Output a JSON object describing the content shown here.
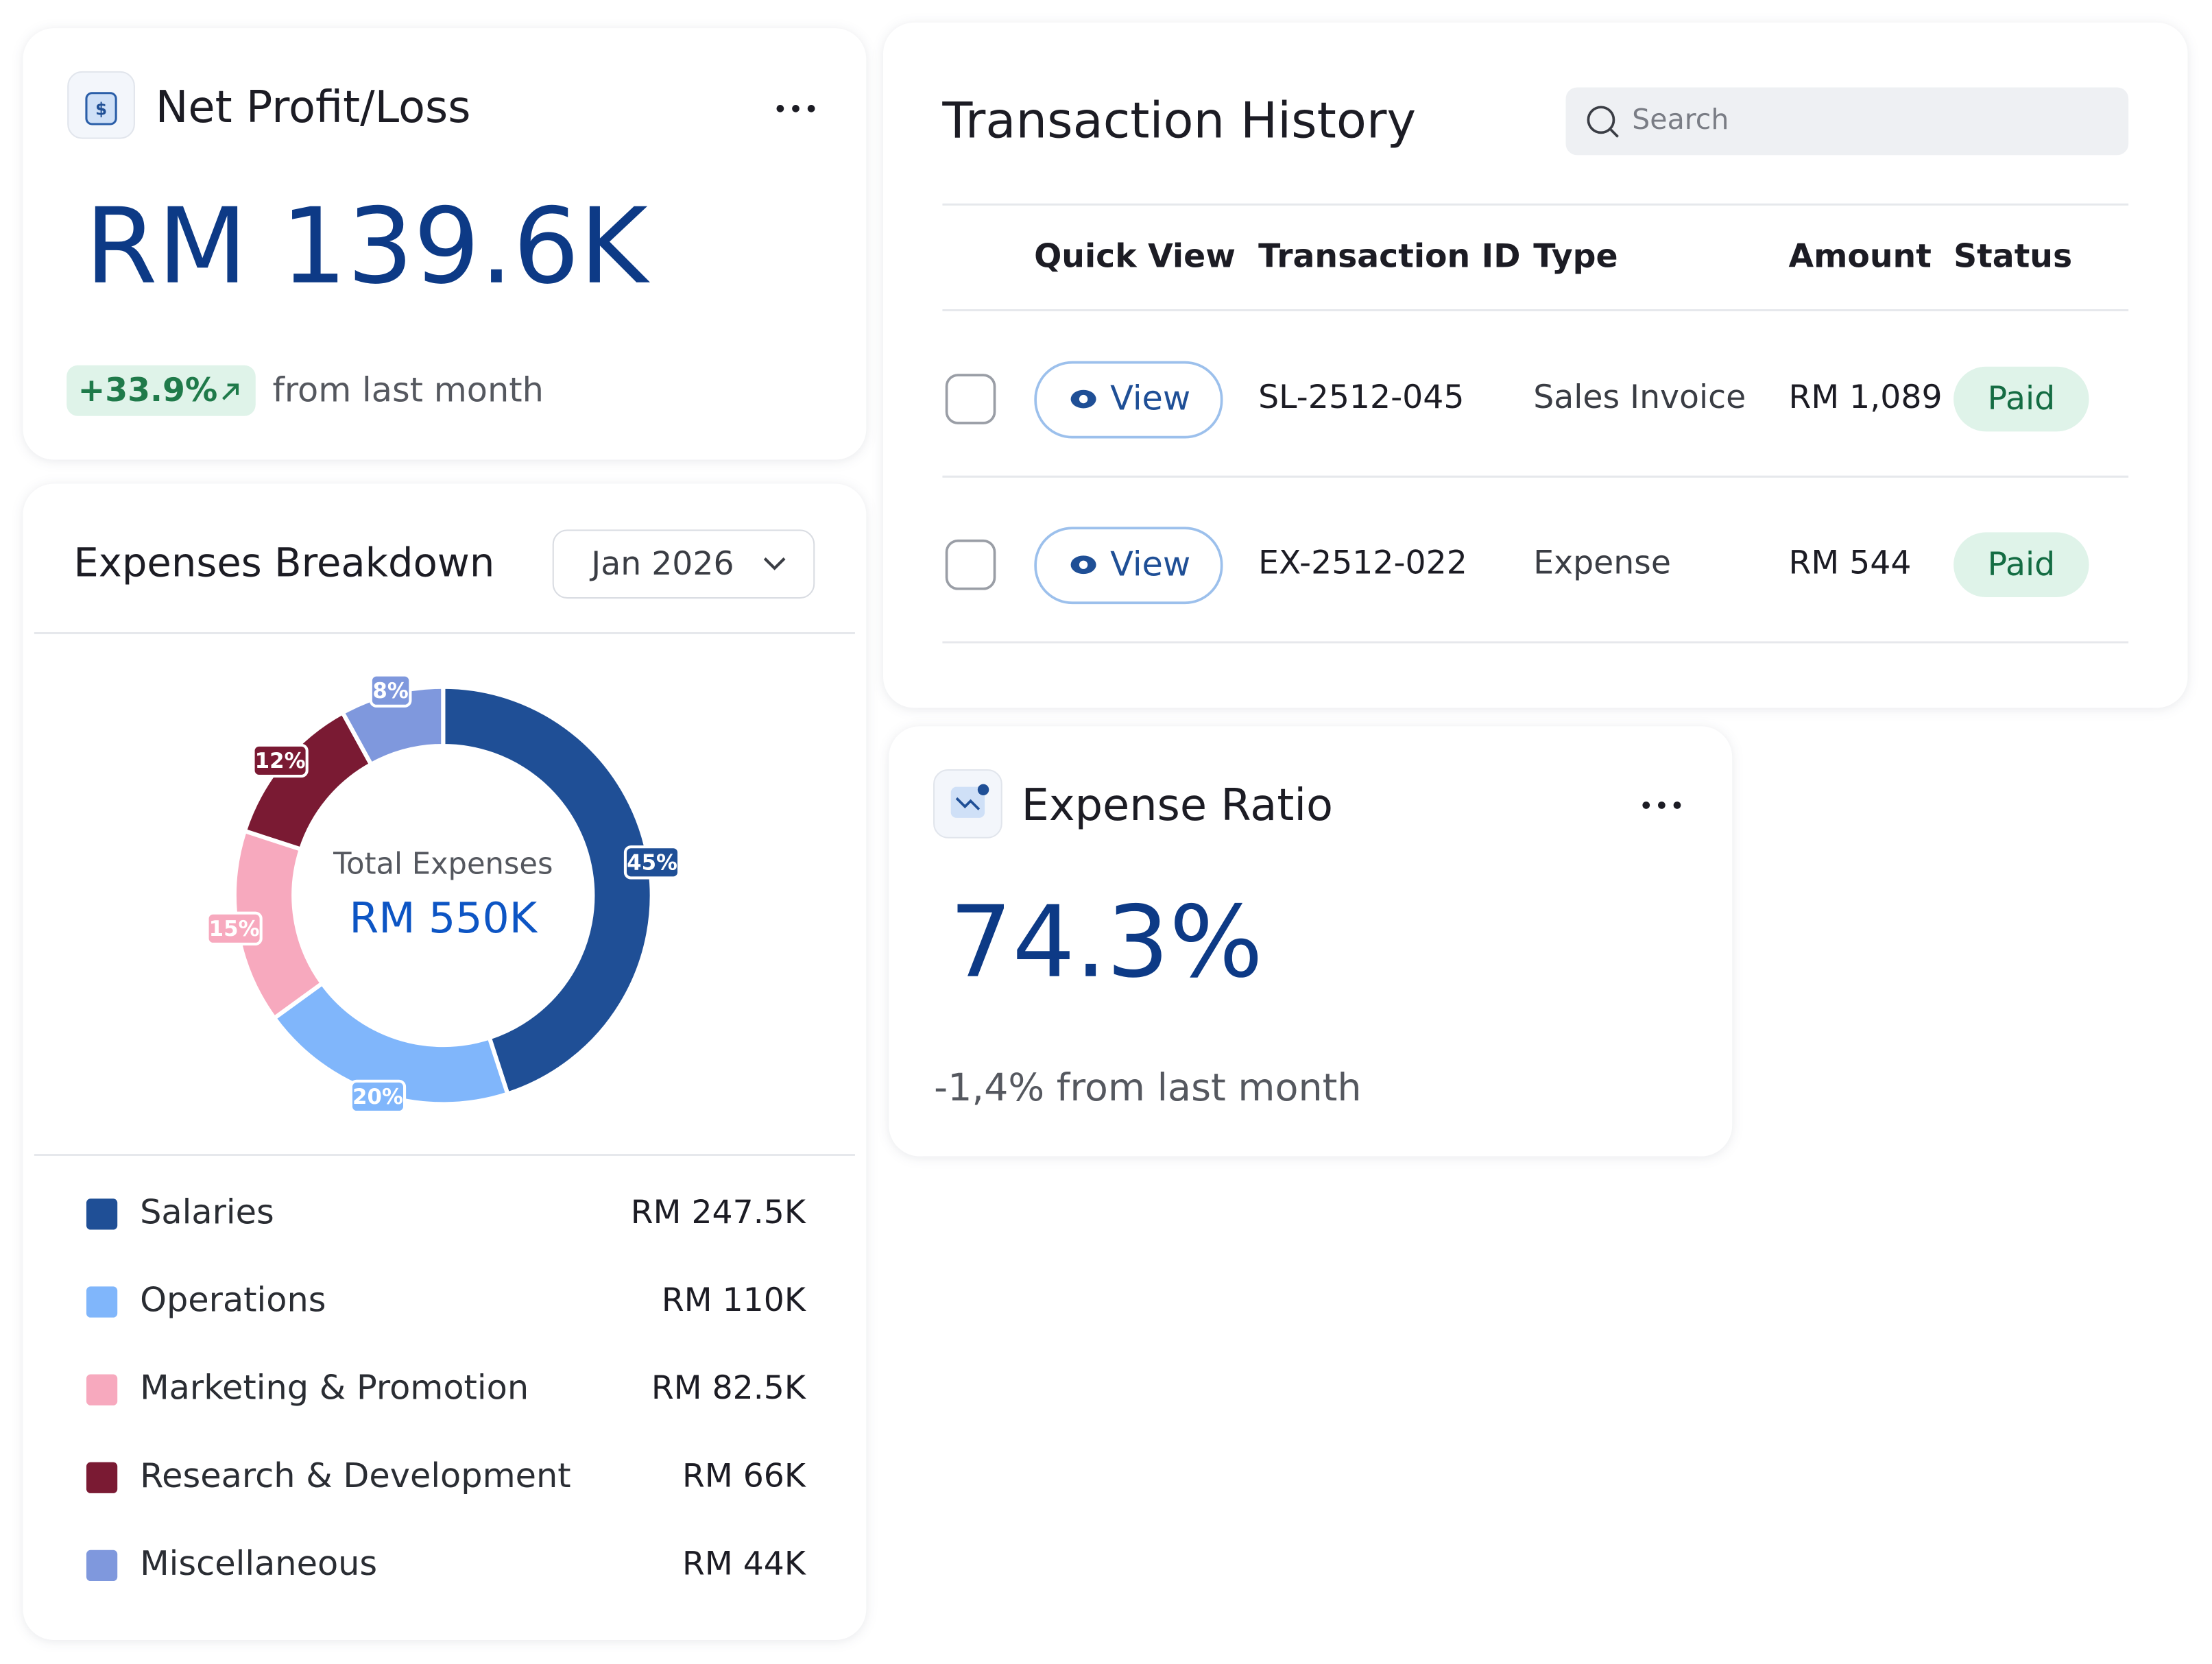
{
  "net_profit": {
    "title": "Net Profit/Loss",
    "value": "RM 139.6K",
    "change": "+33.9%",
    "change_note": "from last month"
  },
  "chart_data": {
    "type": "pie",
    "title": "Expenses Breakdown",
    "period": "Jan 2026",
    "donut": true,
    "center_label": "Total Expenses",
    "center_value": "RM 550K",
    "categories": [
      "Salaries",
      "Operations",
      "Marketing & Promotion",
      "Research & Development",
      "Miscellaneous"
    ],
    "values": [
      45,
      20,
      15,
      12,
      8
    ],
    "value_labels": [
      "45%",
      "20%",
      "15%",
      "12%",
      "8%"
    ],
    "amounts": [
      "RM 247.5K",
      "RM 110K",
      "RM 82.5K",
      "RM 66K",
      "RM 44K"
    ],
    "colors": [
      "#1f4f96",
      "#80b6fb",
      "#f7a9be",
      "#7a1a33",
      "#7f98dd"
    ]
  },
  "transactions": {
    "title": "Transaction History",
    "search_placeholder": "Search",
    "columns": [
      "Quick View",
      "Transaction ID",
      "Type",
      "Amount",
      "Status"
    ],
    "rows": [
      {
        "action": "View",
        "id": "SL-2512-045",
        "type": "Sales Invoice",
        "amount": "RM 1,089",
        "status": "Paid"
      },
      {
        "action": "View",
        "id": "EX-2512-022",
        "type": "Expense",
        "amount": "RM 544",
        "status": "Paid"
      }
    ]
  },
  "expense_ratio": {
    "title": "Expense Ratio",
    "value": "74.3%",
    "change": "-1,4% from last month"
  }
}
